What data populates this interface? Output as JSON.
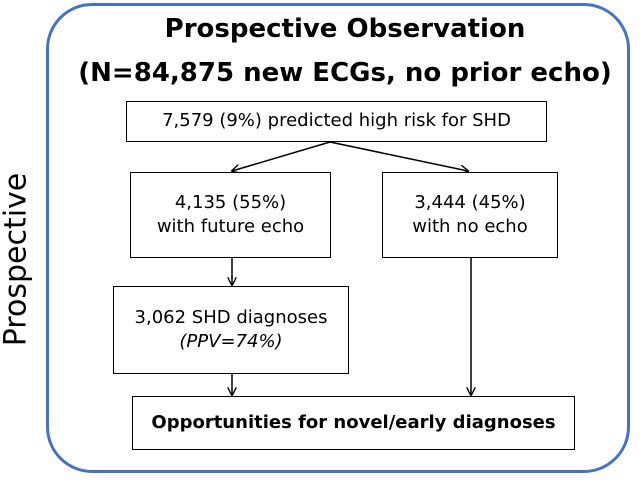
{
  "side_label": "Prospective",
  "title_line1": "Prospective Observation",
  "title_line2": "(N=84,875 new ECGs, no prior echo)",
  "boxes": {
    "top": "7,579 (9%) predicted high risk for SHD",
    "left_mid": {
      "line1": "4,135 (55%)",
      "line2": "with future echo"
    },
    "right_mid": {
      "line1": "3,444 (45%)",
      "line2": "with no echo"
    },
    "diagnoses": {
      "line1": "3,062 SHD diagnoses",
      "line2": "(PPV=74%)"
    },
    "bottom": "Opportunities for novel/early diagnoses"
  },
  "colors": {
    "frame": "#4472c4",
    "box_border": "#000000",
    "arrow": "#000000"
  }
}
